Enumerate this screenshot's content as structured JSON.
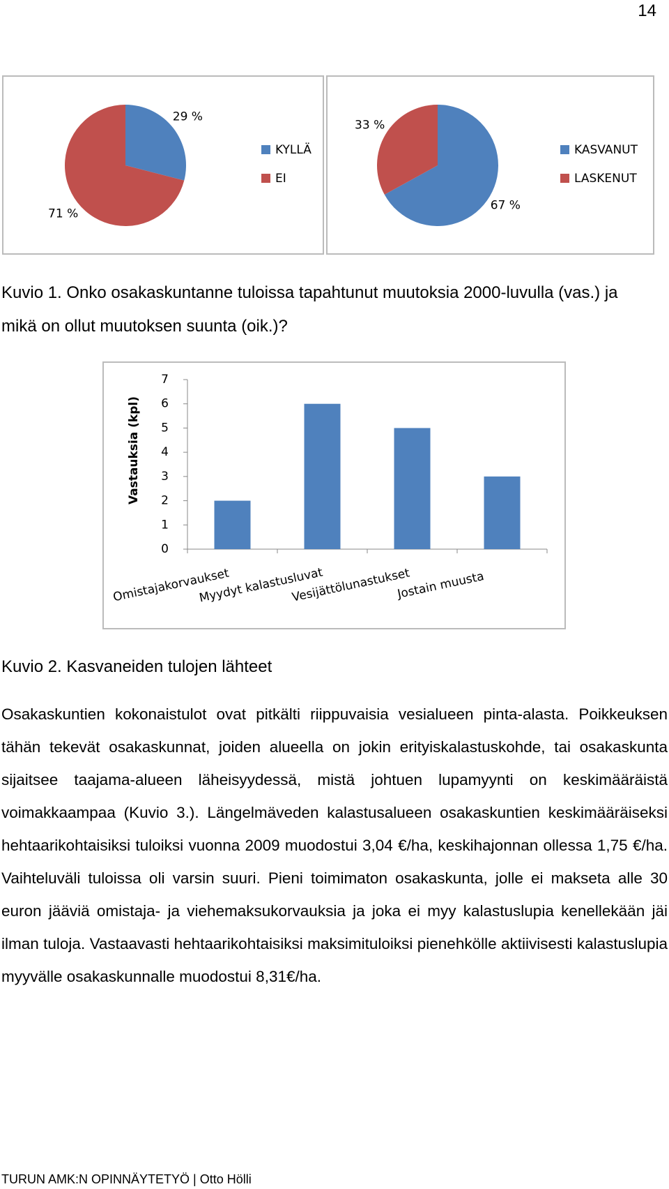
{
  "page_number": "14",
  "chart_data": [
    {
      "type": "pie",
      "categories": [
        "KYLLÄ",
        "EI"
      ],
      "values": [
        29,
        71
      ],
      "value_labels": [
        "29 %",
        "71 %"
      ],
      "colors": [
        "#4f81bd",
        "#c0504d"
      ]
    },
    {
      "type": "pie",
      "categories": [
        "KASVANUT",
        "LASKENUT"
      ],
      "values": [
        67,
        33
      ],
      "value_labels": [
        "67 %",
        "33 %"
      ],
      "colors": [
        "#4f81bd",
        "#c0504d"
      ]
    },
    {
      "type": "bar",
      "y_label": "Vastauksia (kpl)",
      "categories": [
        "Omistajakorvaukset",
        "Myydyt kalastusluvat",
        "Vesijättölunastukset",
        "Jostain muusta"
      ],
      "values": [
        2,
        6,
        5,
        3
      ],
      "color": "#4f81bd",
      "ylim": [
        0,
        7
      ],
      "yticks": [
        0,
        1,
        2,
        3,
        4,
        5,
        6,
        7
      ],
      "grid": false
    }
  ],
  "captions": [
    "Kuvio 1. Onko osakaskuntanne tuloissa tapahtunut muutoksia 2000-luvulla (vas.) ja mikä on ollut muutoksen suunta (oik.)?",
    "Kuvio 2. Kasvaneiden tulojen lähteet"
  ],
  "paragraph": "Osakaskuntien kokonaistulot ovat pitkälti riippuvaisia vesialueen pinta-alasta. Poikkeuksen tähän tekevät osakaskunnat, joiden alueella on jokin erityiskalastuskohde, tai osakaskunta sijaitsee taajama-alueen läheisyydessä, mistä johtuen lupamyynti on keskimääräistä voimakkaampaa (Kuvio 3.). Längelmäveden kalastusalueen osakaskuntien keskimääräiseksi hehtaarikohtaisiksi tuloiksi vuonna 2009 muodostui 3,04 €/ha, keskihajonnan ollessa 1,75 €/ha. Vaihteluväli tuloissa oli varsin suuri. Pieni toimimaton osakaskunta, jolle ei makseta alle 30 euron jääviä omistaja- ja viehemaksukorvauksia ja joka ei myy kalastuslupia kenellekään jäi ilman tuloja. Vastaavasti hehtaarikohtaisiksi maksimituloiksi pienehkölle aktiivisesti kalastuslupia myyvälle osakaskunnalle muodostui 8,31€/ha.",
  "footer": "TURUN AMK:N OPINNÄYTETYÖ | Otto Hölli"
}
